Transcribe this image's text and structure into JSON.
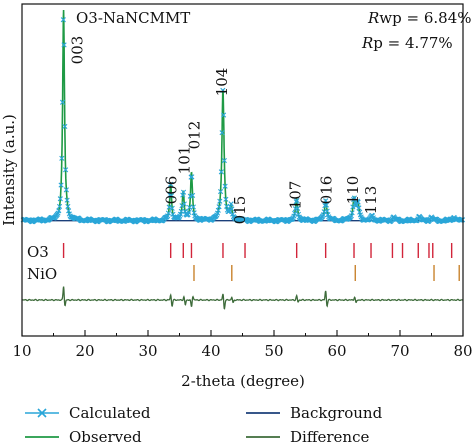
{
  "chart_data": {
    "type": "line",
    "title": "O3-NaNCMMT",
    "stats": {
      "rwp_symbol": "R",
      "rwp_sub": "wp",
      "rwp_value": " = 6.84%",
      "rp_symbol": "R",
      "rp_sub": "p",
      "rp_value": " = 4.77%"
    },
    "xlabel": "2-theta (degree)",
    "ylabel": "Intensity (a.u.)",
    "xlim": [
      10,
      80
    ],
    "xticks": [
      "10",
      "20",
      "30",
      "40",
      "50",
      "60",
      "70",
      "80"
    ],
    "peaks": [
      {
        "x": 16.6,
        "h": 1.0,
        "w": 0.18,
        "label": "003"
      },
      {
        "x": 33.6,
        "h": 0.17,
        "w": 0.18,
        "label": "006"
      },
      {
        "x": 35.6,
        "h": 0.14,
        "w": 0.18,
        "label": "101"
      },
      {
        "x": 36.9,
        "h": 0.22,
        "w": 0.18,
        "label": "012"
      },
      {
        "x": 41.9,
        "h": 0.63,
        "w": 0.2,
        "label": "104"
      },
      {
        "x": 43.2,
        "h": 0.06,
        "w": 0.18,
        "label": "015"
      },
      {
        "x": 53.6,
        "h": 0.1,
        "w": 0.2,
        "label": "107"
      },
      {
        "x": 58.2,
        "h": 0.1,
        "w": 0.22,
        "label": "016"
      },
      {
        "x": 62.7,
        "h": 0.1,
        "w": 0.24,
        "label": "110"
      },
      {
        "x": 63.3,
        "h": 0.08,
        "w": 0.22,
        "label": "113"
      },
      {
        "x": 65.6,
        "h": 0.02,
        "w": 0.22,
        "label": ""
      },
      {
        "x": 69.0,
        "h": 0.015,
        "w": 0.22,
        "label": ""
      },
      {
        "x": 73.0,
        "h": 0.018,
        "w": 0.22,
        "label": ""
      },
      {
        "x": 75.0,
        "h": 0.015,
        "w": 0.22,
        "label": ""
      },
      {
        "x": 78.6,
        "h": 0.02,
        "w": 0.22,
        "label": ""
      }
    ],
    "background_level": 0.035,
    "phase_ticks": [
      {
        "name": "O3",
        "color": "#d2253a",
        "positions": [
          16.6,
          33.6,
          35.6,
          36.9,
          41.9,
          45.4,
          53.6,
          58.2,
          62.7,
          65.4,
          68.8,
          70.4,
          72.9,
          74.6,
          75.2,
          78.2
        ]
      },
      {
        "name": "NiO",
        "color": "#c9832e",
        "positions": [
          37.3,
          43.3,
          62.9,
          75.4,
          79.4
        ]
      }
    ],
    "difference_spikes": [
      {
        "x": 16.6,
        "v": 14,
        "mirror": -6
      },
      {
        "x": 33.6,
        "v": 5,
        "mirror": -6
      },
      {
        "x": 35.7,
        "v": 3,
        "mirror": -5
      },
      {
        "x": 36.9,
        "v": -7,
        "mirror": 4
      },
      {
        "x": 41.9,
        "v": 6,
        "mirror": -9
      },
      {
        "x": 43.3,
        "v": 3,
        "mirror": -3
      },
      {
        "x": 53.6,
        "v": 4,
        "mirror": -2
      },
      {
        "x": 58.2,
        "v": 9,
        "mirror": -6
      },
      {
        "x": 62.8,
        "v": 3,
        "mirror": -3
      }
    ],
    "colors": {
      "calculated": "#2aa6d8",
      "observed": "#1f9a45",
      "background": "#1b3f7a",
      "difference": "#3d6b3a"
    },
    "legend": [
      {
        "label": "Calculated",
        "style": "calculated"
      },
      {
        "label": "Background",
        "style": "background"
      },
      {
        "label": "Observed",
        "style": "observed"
      },
      {
        "label": "Difference",
        "style": "difference"
      }
    ]
  }
}
